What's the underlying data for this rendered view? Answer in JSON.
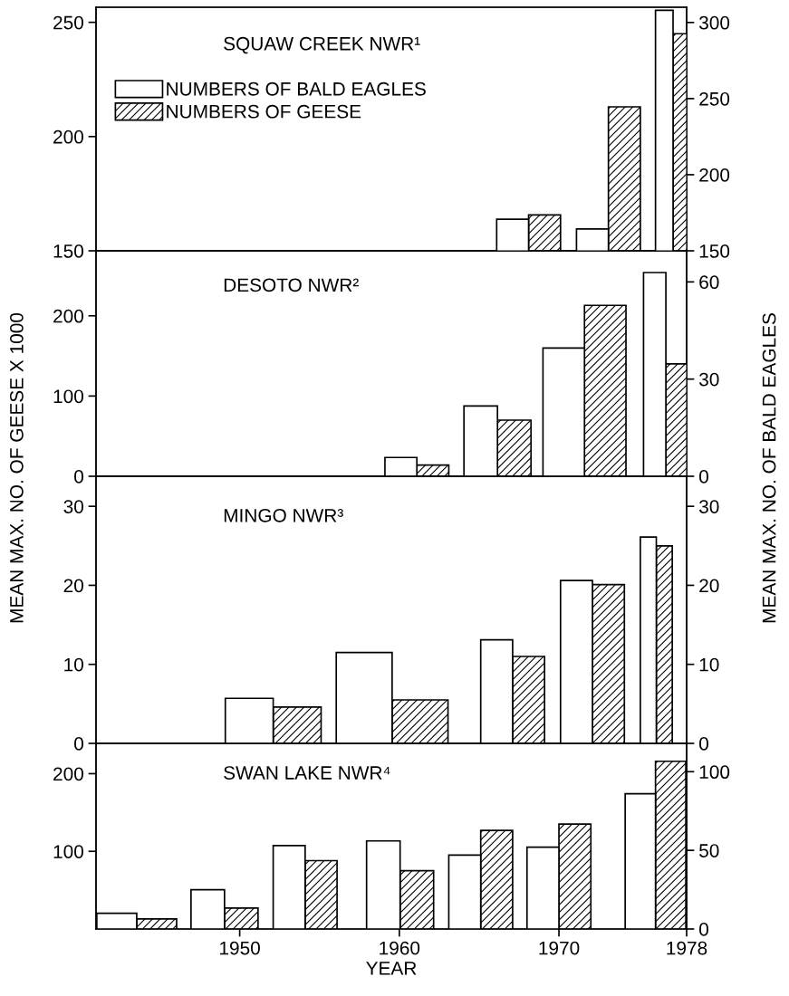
{
  "chart_data": [
    {
      "type": "bar",
      "title": "SQUAW CREEK NWR¹",
      "xlim": [
        1941,
        1978
      ],
      "ylim": [
        150,
        256.6
      ],
      "yticks": [
        150,
        200,
        250
      ],
      "y2lim": [
        150,
        310
      ],
      "y2ticks": [
        150,
        200,
        250,
        300
      ],
      "tick_labels": "y",
      "legend": "top left",
      "series": [
        {
          "name": "NUMBERS OF BALD EAGLES",
          "color": "#ffffff",
          "axis": "y2",
          "x": [
            1967.1,
            1972.1,
            1976.6
          ],
          "values": [
            170.7,
            164.3,
            308
          ]
        },
        {
          "name": "NUMBERS OF GEESE",
          "color": "#000000",
          "x": [
            1969.1,
            1974.1,
            1977.7
          ],
          "values": [
            165.7,
            213,
            245
          ]
        }
      ]
    },
    {
      "type": "bar",
      "title": "DESOTO NWR²",
      "xlim": [
        1941,
        1978
      ],
      "ylim": [
        0,
        281
      ],
      "yticks": [
        0,
        100,
        200
      ],
      "y2lim": [
        0,
        69.6
      ],
      "y2ticks": [
        0,
        30,
        60
      ],
      "tick_labels": "y",
      "series": [
        {
          "color": "#ffffff",
          "axis": "y2",
          "x": [
            1960.1,
            1965.1,
            1970.3,
            1976.0
          ],
          "values": [
            5.8,
            21.7,
            39.6,
            62.9
          ]
        },
        {
          "color": "#000000",
          "x": [
            1962.1,
            1967.2,
            1972.9,
            1977.4
          ],
          "values": [
            14,
            70,
            213,
            140
          ]
        }
      ]
    },
    {
      "type": "bar",
      "title": "MINGO NWR³",
      "ylabel": "MEAN MAX. NO. OF GEESE X 1000",
      "y2label": "MEAN MAX. NO. OF BALD EAGLES",
      "xlim": [
        1941,
        1978
      ],
      "ylim": [
        0,
        33.8
      ],
      "yticks": [
        0,
        10,
        20,
        30
      ],
      "y2lim": [
        0,
        33.8
      ],
      "y2ticks": [
        0,
        10,
        20,
        30
      ],
      "tick_labels": "y",
      "series": [
        {
          "color": "#ffffff",
          "axis": "y2",
          "x": [
            1950.6,
            1957.8,
            1966.1,
            1971.1,
            1975.6
          ],
          "values": [
            5.7,
            11.5,
            13.1,
            20.6,
            26.1
          ]
        },
        {
          "color": "#000000",
          "x": [
            1953.6,
            1961.3,
            1968.1,
            1973.1,
            1976.6
          ],
          "values": [
            4.6,
            5.5,
            11.0,
            20.1,
            25.0
          ]
        }
      ]
    },
    {
      "type": "bar",
      "title": "SWAN LAKE NWR⁴",
      "xlabel": "YEAR",
      "xlim": [
        1941,
        1978
      ],
      "xticks": [
        1950,
        1960,
        1970,
        1978
      ],
      "ylim": [
        0,
        239
      ],
      "yticks": [
        100,
        200
      ],
      "y2lim": [
        0,
        118
      ],
      "y2ticks": [
        0,
        50,
        100
      ],
      "series": [
        {
          "color": "#ffffff",
          "axis": "y2",
          "x": [
            1942.3,
            1948.0,
            1953.1,
            1959.0,
            1964.1,
            1969.0,
            1975.1
          ],
          "values": [
            10,
            25,
            53,
            56,
            47,
            52,
            86
          ]
        },
        {
          "color": "#000000",
          "x": [
            1944.8,
            1950.1,
            1955.1,
            1961.1,
            1966.1,
            1971.0,
            1977.0
          ],
          "values": [
            13,
            27,
            88,
            75,
            127,
            135,
            216
          ]
        }
      ]
    }
  ]
}
